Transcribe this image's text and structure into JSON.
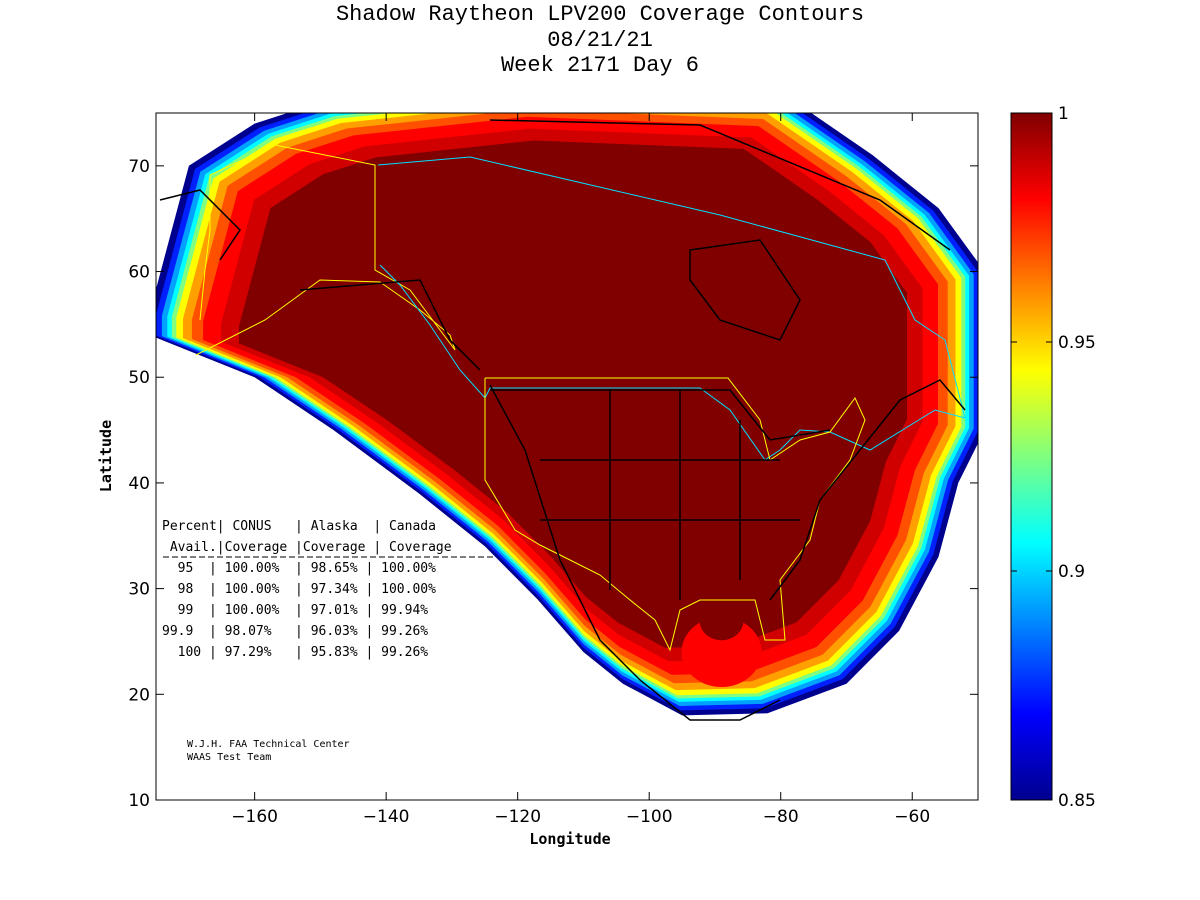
{
  "chart_data": {
    "type": "heatmap",
    "subtype": "contour map",
    "title": [
      "Shadow Raytheon LPV200 Coverage Contours",
      "08/21/21",
      "Week 2171 Day 6"
    ],
    "xlabel": "Longitude",
    "ylabel": "Latitude",
    "xlim": [
      -175,
      -50
    ],
    "ylim": [
      10,
      75
    ],
    "xticks": [
      -160,
      -140,
      -120,
      -100,
      -80,
      -60
    ],
    "yticks": [
      10,
      20,
      30,
      40,
      50,
      60,
      70
    ],
    "colorbar": {
      "range": [
        0.85,
        1
      ],
      "ticks": [
        0.85,
        0.9,
        0.95,
        1
      ],
      "colormap": "jet"
    },
    "contour_levels": [
      0.85,
      0.88,
      0.9,
      0.93,
      0.95,
      0.97,
      0.98,
      0.99,
      1
    ],
    "table": {
      "header1": [
        "Percent",
        "CONUS",
        "Alaska",
        "Canada"
      ],
      "header2": [
        "Avail.",
        "Coverage",
        "Coverage",
        "Coverage"
      ],
      "rows": [
        [
          "95",
          "100.00%",
          "98.65%",
          "100.00%"
        ],
        [
          "98",
          "100.00%",
          "97.34%",
          "100.00%"
        ],
        [
          "99",
          "100.00%",
          "97.01%",
          "99.94%"
        ],
        [
          "99.9",
          "98.07%",
          "96.03%",
          "99.26%"
        ],
        [
          "100",
          "97.29%",
          "95.83%",
          "99.26%"
        ]
      ]
    },
    "credit": [
      "W.J.H. FAA Technical Center",
      "WAAS Test Team"
    ]
  }
}
